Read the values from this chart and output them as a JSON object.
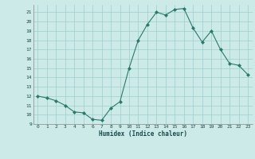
{
  "x": [
    0,
    1,
    2,
    3,
    4,
    5,
    6,
    7,
    8,
    9,
    10,
    11,
    12,
    13,
    14,
    15,
    16,
    17,
    18,
    19,
    20,
    21,
    22,
    23
  ],
  "y": [
    12,
    11.8,
    11.5,
    11,
    10.3,
    10.2,
    9.5,
    9.4,
    10.7,
    11.4,
    15,
    18,
    19.7,
    21,
    20.7,
    21.3,
    21.4,
    19.3,
    17.8,
    19,
    17,
    15.5,
    15.3,
    14.3
  ],
  "xlabel": "Humidex (Indice chaleur)",
  "ylim": [
    9,
    21.8
  ],
  "xlim": [
    -0.5,
    23.5
  ],
  "yticks": [
    9,
    10,
    11,
    12,
    13,
    14,
    15,
    16,
    17,
    18,
    19,
    20,
    21
  ],
  "xticks": [
    0,
    1,
    2,
    3,
    4,
    5,
    6,
    7,
    8,
    9,
    10,
    11,
    12,
    13,
    14,
    15,
    16,
    17,
    18,
    19,
    20,
    21,
    22,
    23
  ],
  "line_color": "#2a7a6a",
  "marker_color": "#2a7a6a",
  "bg_color": "#cceae8",
  "grid_color": "#9ecece",
  "font_color": "#1a4a4a"
}
